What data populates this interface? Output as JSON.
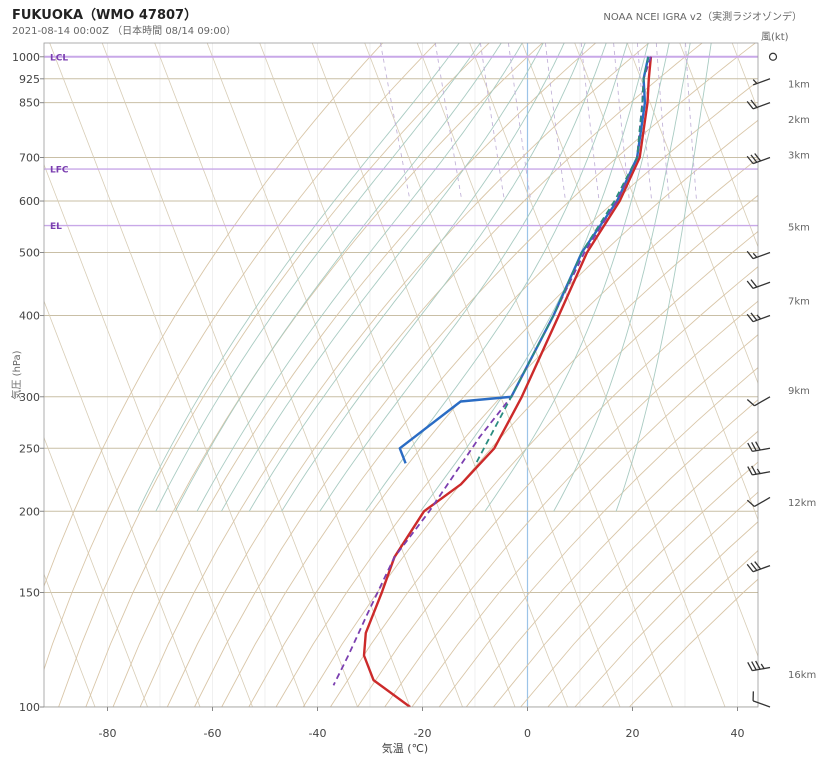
{
  "header": {
    "title": "FUKUOKA（WMO 47807）",
    "subtitle": "2021-08-14 00:00Z （日本時間 08/14 09:00）",
    "source": "NOAA NCEI IGRA v2（実測ラジオゾンデ）"
  },
  "chart_data": {
    "type": "line",
    "subtype": "skew-T log-P",
    "xlabel": "気温 (℃)",
    "ylabel": "気圧 (hPa)",
    "wind_label": "風(kt)",
    "xlim": [
      -92,
      44
    ],
    "ylim": [
      1050,
      100
    ],
    "y_scale": "log",
    "x_ticks": [
      -80,
      -60,
      -40,
      -20,
      0,
      20,
      40
    ],
    "y_ticks": [
      1000,
      925,
      850,
      700,
      600,
      500,
      400,
      300,
      250,
      200,
      150,
      100
    ],
    "height_labels": [
      {
        "p": 907,
        "text": "1km"
      },
      {
        "p": 800,
        "text": "2km"
      },
      {
        "p": 705,
        "text": "3km"
      },
      {
        "p": 546,
        "text": "5km"
      },
      {
        "p": 420,
        "text": "7km"
      },
      {
        "p": 306,
        "text": "9km"
      },
      {
        "p": 206,
        "text": "12km"
      },
      {
        "p": 112,
        "text": "16km"
      }
    ],
    "levels": [
      {
        "name": "EL",
        "p": 550
      },
      {
        "name": "LFC",
        "p": 672
      },
      {
        "name": "LCL",
        "p": 1000
      }
    ],
    "series": [
      {
        "name": "",
        "color": "#cc2a2a",
        "dash": false,
        "points": [
          [
            23.5,
            1000
          ],
          [
            21.5,
            925
          ],
          [
            19.5,
            850
          ],
          [
            14,
            700
          ],
          [
            7,
            600
          ],
          [
            -3,
            500
          ],
          [
            -13,
            400
          ],
          [
            -26,
            300
          ],
          [
            -35,
            250
          ],
          [
            -44,
            220
          ],
          [
            -53,
            200
          ],
          [
            -62,
            170
          ],
          [
            -67,
            150
          ],
          [
            -73,
            130
          ],
          [
            -75,
            120
          ],
          [
            -75,
            110
          ],
          [
            -70,
            100
          ]
        ]
      },
      {
        "name": "",
        "color": "#2a6cc4",
        "dash": false,
        "points": [
          [
            23,
            1000
          ],
          [
            20.5,
            925
          ],
          [
            19,
            850
          ],
          [
            13.5,
            700
          ],
          [
            6.5,
            600
          ],
          [
            -4,
            500
          ],
          [
            -14,
            400
          ],
          [
            -28,
            300
          ],
          [
            -38,
            295
          ],
          [
            -53,
            250
          ],
          [
            -53,
            237
          ]
        ]
      },
      {
        "name": "",
        "color": "#7b3fb0",
        "dash": true,
        "points": [
          [
            23.5,
            1000
          ],
          [
            20.5,
            925
          ],
          [
            18.5,
            850
          ],
          [
            13.5,
            700
          ],
          [
            6.5,
            600
          ],
          [
            -3.5,
            500
          ],
          [
            -14,
            400
          ],
          [
            -28,
            300
          ],
          [
            -37,
            260
          ],
          [
            -44,
            230
          ],
          [
            -52,
            200
          ],
          [
            -62,
            170
          ],
          [
            -71,
            140
          ],
          [
            -78,
            120
          ],
          [
            -83,
            108
          ]
        ]
      },
      {
        "name": "",
        "color": "#2a8c80",
        "dash": true,
        "points": [
          [
            23,
            1000
          ],
          [
            20.5,
            925
          ],
          [
            18.5,
            850
          ],
          [
            13.5,
            700
          ],
          [
            6,
            600
          ],
          [
            -4,
            500
          ],
          [
            -14,
            400
          ],
          [
            -28,
            300
          ],
          [
            -36,
            255
          ],
          [
            -40,
            235
          ]
        ]
      }
    ],
    "wind_barbs": [
      {
        "p": 1000,
        "calm": true
      },
      {
        "p": 925,
        "dir": 250,
        "speed": 5
      },
      {
        "p": 850,
        "dir": 250,
        "speed": 20
      },
      {
        "p": 700,
        "dir": 250,
        "speed": 30
      },
      {
        "p": 500,
        "dir": 250,
        "speed": 15
      },
      {
        "p": 450,
        "dir": 250,
        "speed": 20
      },
      {
        "p": 400,
        "dir": 250,
        "speed": 25
      },
      {
        "p": 300,
        "dir": 240,
        "speed": 10
      },
      {
        "p": 250,
        "dir": 260,
        "speed": 30
      },
      {
        "p": 230,
        "dir": 260,
        "speed": 25
      },
      {
        "p": 210,
        "dir": 240,
        "speed": 10
      },
      {
        "p": 165,
        "dir": 250,
        "speed": 30
      },
      {
        "p": 115,
        "dir": 260,
        "speed": 35
      },
      {
        "p": 100,
        "dir": 290,
        "speed": 10
      }
    ],
    "grid": true,
    "legend": "none"
  }
}
